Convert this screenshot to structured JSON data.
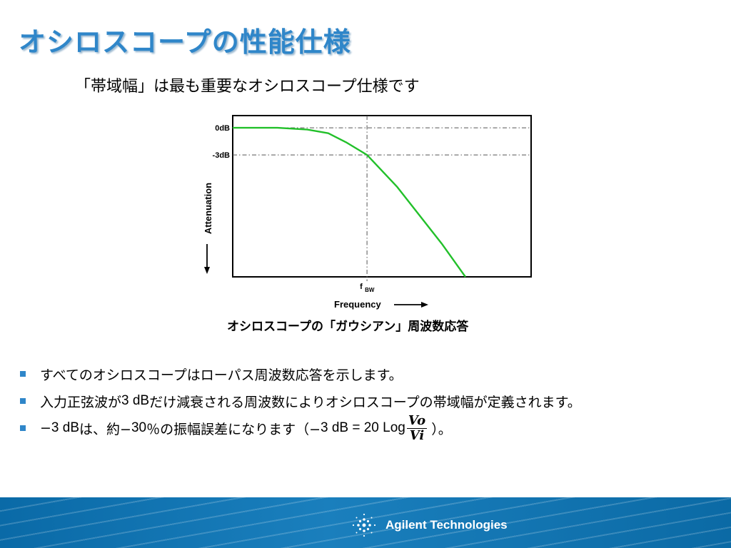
{
  "title": "オシロスコープの性能仕様",
  "subtitle": "「帯域幅」は最も重要なオシロスコープ仕様です",
  "chart_caption": "オシロスコープの「ガウシアン」周波数応答",
  "chart_data": {
    "type": "line",
    "title": "",
    "xlabel": "Frequency",
    "ylabel": "Attenuation",
    "y_ticks": [
      "0dB",
      "-3dB"
    ],
    "x_ticks": [
      "f",
      "BW"
    ],
    "grid": "dash-dot reference lines at 0dB, -3dB and f_BW",
    "series": [
      {
        "color": "#22c02a",
        "x": [
          0,
          0.15,
          0.25,
          0.32,
          0.38,
          0.45,
          0.55,
          0.7,
          0.78
        ],
        "y": [
          0,
          0,
          -0.2,
          -0.6,
          -1.6,
          -3,
          -6.5,
          -12.8,
          -16.5
        ]
      }
    ],
    "xlim": [
      0,
      1
    ],
    "ylim": [
      -16.5,
      1.35
    ]
  },
  "bullets": [
    {
      "parts": [
        "すべてのオシロスコープはローパス周波数応答を示します。"
      ]
    },
    {
      "parts": [
        "入力正弦波が",
        "3 dB",
        "だけ減衰される周波数によりオシロスコープの帯域幅が定義されます。"
      ]
    },
    {
      "parts": [
        "−",
        "3 dB",
        "は、約−",
        "30 ",
        "％の振幅誤差になります（−",
        "3 dB = 20 Log"
      ],
      "fraction": {
        "num": "Vo",
        "den": "Vi"
      },
      "suffix": "）。"
    }
  ],
  "footer": {
    "logo_text": "Agilent Technologies"
  },
  "colors": {
    "title": "#2f86c9",
    "curve": "#22c02a",
    "footer": "#0a6aa7",
    "bullet": "#2f86c9"
  }
}
